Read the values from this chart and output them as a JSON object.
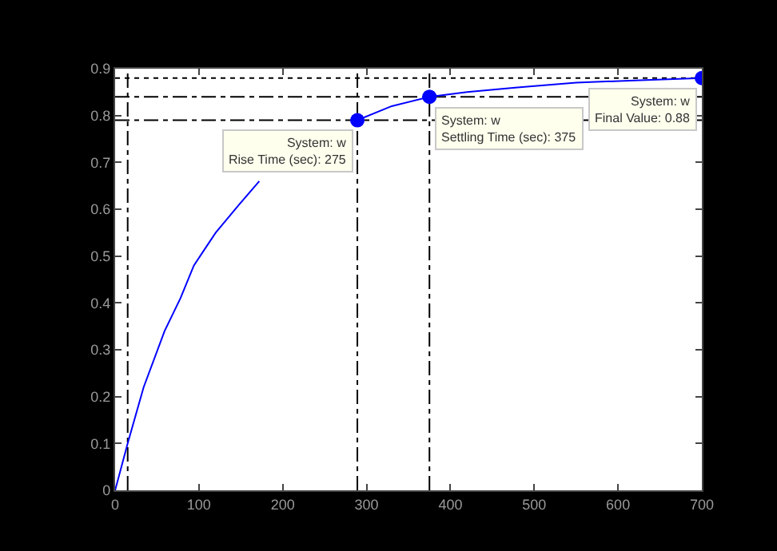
{
  "chart_data": {
    "type": "line",
    "x": [
      0,
      15,
      34,
      59,
      78,
      94,
      120,
      148,
      172,
      220,
      250,
      289,
      330,
      375,
      420,
      480,
      550,
      620,
      700
    ],
    "series": [
      {
        "color": "#0000ff",
        "values": [
          0,
          0.1,
          0.22,
          0.34,
          0.41,
          0.48,
          0.55,
          0.61,
          0.66,
          null,
          null,
          0.79,
          0.82,
          0.84,
          0.85,
          0.86,
          0.87,
          0.875,
          0.88
        ],
        "marker": "none"
      },
      {
        "type": "scatter",
        "x": [
          289,
          375,
          700
        ],
        "color": "#0000ff",
        "values": [
          0.79,
          0.84,
          0.88
        ],
        "marker": "circle"
      }
    ],
    "xlim": [
      0,
      700
    ],
    "ylim": [
      0,
      0.9
    ],
    "xticks": [
      0,
      100,
      200,
      300,
      400,
      500,
      600,
      700
    ],
    "yticks": [
      0,
      0.1,
      0.2,
      0.3,
      0.4,
      0.5,
      0.6,
      0.7,
      0.8,
      0.9
    ],
    "grid": false,
    "ref_lines": [
      {
        "axis": "x",
        "value": 15,
        "line_style": "dashed",
        "color": "#000000"
      },
      {
        "axis": "x",
        "value": 289,
        "line_style": "dashed",
        "color": "#000000"
      },
      {
        "axis": "x",
        "value": 375,
        "line_style": "dashed",
        "color": "#000000"
      },
      {
        "axis": "y",
        "value": 0.79,
        "line_style": "dashed",
        "color": "#000000"
      },
      {
        "axis": "y",
        "value": 0.84,
        "line_style": "dashed",
        "color": "#000000"
      },
      {
        "axis": "y",
        "value": 0.88,
        "line_style": "dotted",
        "color": "#000000"
      }
    ],
    "annotations": [
      {
        "text": "System: w\nRise Time (sec): 275",
        "x": 289,
        "y": 0.79
      },
      {
        "text": "System: w\nSettling Time (sec): 375",
        "x": 375,
        "y": 0.84
      },
      {
        "text": "System: w\nFinal Value: 0.88",
        "x": 700,
        "y": 0.88
      }
    ]
  }
}
